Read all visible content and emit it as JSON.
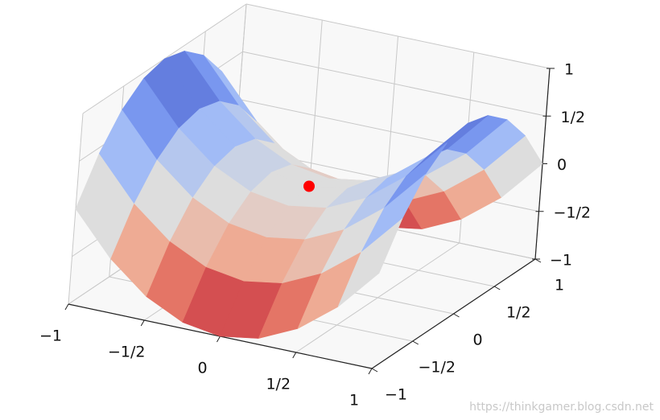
{
  "chart_data": {
    "type": "surface",
    "x": [
      -1,
      -0.75,
      -0.5,
      -0.25,
      0,
      0.25,
      0.5,
      0.75,
      1
    ],
    "y": [
      -1,
      -0.75,
      -0.5,
      -0.25,
      0,
      0.25,
      0.5,
      0.75,
      1
    ],
    "z": [
      [
        0,
        -0.4375,
        -0.75,
        -0.9375,
        -1,
        -0.9375,
        -0.75,
        -0.4375,
        0
      ],
      [
        0.4375,
        0,
        -0.3125,
        -0.5,
        -0.5625,
        -0.5,
        -0.3125,
        0,
        0.4375
      ],
      [
        0.75,
        0.3125,
        0,
        -0.1875,
        -0.25,
        -0.1875,
        0,
        0.3125,
        0.75
      ],
      [
        0.9375,
        0.5,
        0.1875,
        0,
        -0.0625,
        0,
        0.1875,
        0.5,
        0.9375
      ],
      [
        1,
        0.5625,
        0.25,
        0.0625,
        0,
        0.0625,
        0.25,
        0.5625,
        1
      ],
      [
        0.9375,
        0.5,
        0.1875,
        0,
        -0.0625,
        0,
        0.1875,
        0.5,
        0.9375
      ],
      [
        0.75,
        0.3125,
        0,
        -0.1875,
        -0.25,
        -0.1875,
        0,
        0.3125,
        0.75
      ],
      [
        0.4375,
        0,
        -0.3125,
        -0.5,
        -0.5625,
        -0.5,
        -0.3125,
        0,
        0.4375
      ],
      [
        0,
        -0.4375,
        -0.75,
        -0.9375,
        -1,
        -0.9375,
        -0.75,
        -0.4375,
        0
      ]
    ],
    "colors": [
      "#b40426",
      "#f49a7b",
      "#dddddd",
      "#8db0fe",
      "#3b4cc0"
    ],
    "points": [
      {
        "x": 0,
        "y": 0,
        "z": 0,
        "color": "#ff0000"
      }
    ],
    "xlim": [
      -1,
      1
    ],
    "ylim": [
      -1,
      1
    ],
    "zlim": [
      -1,
      1
    ],
    "xticks": [
      {
        "value": -1,
        "label": "−1"
      },
      {
        "value": -0.5,
        "label": "−1/2"
      },
      0,
      {
        "value": 0.5,
        "label": "1/2"
      },
      1
    ],
    "yticks": [
      {
        "value": -1,
        "label": "−1"
      },
      {
        "value": -0.5,
        "label": "−1/2"
      },
      0,
      {
        "value": 0.5,
        "label": "1/2"
      },
      1
    ],
    "zticks": [
      {
        "value": -1,
        "label": "−1"
      },
      {
        "value": -0.5,
        "label": "−1/2"
      },
      0,
      {
        "value": 0.5,
        "label": "1/2"
      },
      1
    ],
    "grid": true,
    "watermark": "https://thinkgamer.blog.csdn.net"
  }
}
